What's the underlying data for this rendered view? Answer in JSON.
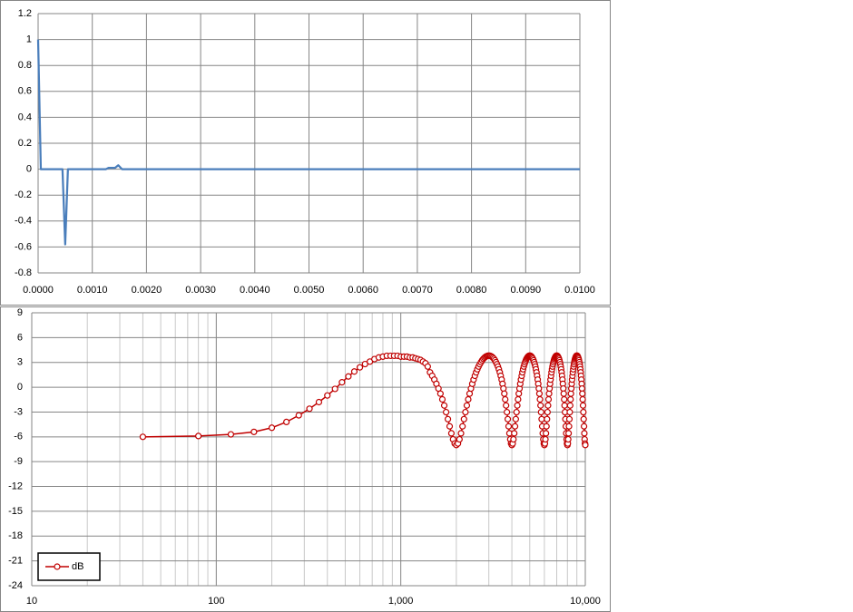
{
  "chart_data": [
    {
      "type": "line",
      "grid": true,
      "x": [
        0,
        5e-05,
        0.00045,
        0.0005,
        0.00055,
        0.00125,
        0.0013,
        0.00142,
        0.00148,
        0.00155,
        0.01
      ],
      "series": [
        {
          "color": "#4a7ebb",
          "values": [
            1,
            0,
            0,
            -0.58,
            0,
            0,
            0.01,
            0.01,
            0.03,
            0,
            0
          ]
        }
      ],
      "xlim": [
        0,
        0.01
      ],
      "xticks": [
        {
          "value": 0,
          "label": "0.0000"
        },
        {
          "value": 0.001,
          "label": "0.0010"
        },
        {
          "value": 0.002,
          "label": "0.0020"
        },
        {
          "value": 0.003,
          "label": "0.0030"
        },
        {
          "value": 0.004,
          "label": "0.0040"
        },
        {
          "value": 0.005,
          "label": "0.0050"
        },
        {
          "value": 0.006,
          "label": "0.0060"
        },
        {
          "value": 0.007,
          "label": "0.0070"
        },
        {
          "value": 0.008,
          "label": "0.0080"
        },
        {
          "value": 0.009,
          "label": "0.0090"
        },
        {
          "value": 0.01,
          "label": "0.0100"
        }
      ],
      "ylim": [
        -0.8,
        1.2
      ],
      "yticks": [
        -0.8,
        -0.6,
        -0.4,
        -0.2,
        0,
        0.2,
        0.4,
        0.6,
        0.8,
        1,
        1.2
      ]
    },
    {
      "type": "line",
      "grid": true,
      "minor_grid": true,
      "xscale": "log",
      "marker": "circle",
      "legend": "lower left",
      "x": [
        40,
        80,
        120,
        160,
        200,
        240,
        280,
        320,
        360,
        400,
        440,
        480,
        520,
        560,
        600,
        640,
        680,
        720,
        760,
        800,
        840,
        880,
        920,
        960,
        1000,
        1040,
        1080,
        1120,
        1160,
        1200,
        1240,
        1280,
        1320,
        1360,
        1400,
        1440,
        1480,
        1520,
        1560,
        1600,
        1640,
        1680,
        1720,
        1760,
        1800,
        1840,
        1880,
        1920,
        1960,
        2000,
        2040,
        2080,
        2120,
        2160,
        2200,
        2240,
        2280,
        2320,
        2360,
        2400,
        2440,
        2480,
        2520,
        2560,
        2600,
        2640,
        2680,
        2720,
        2760,
        2800,
        2840,
        2880,
        2920,
        2960,
        3000,
        3040,
        3080,
        3120,
        3160,
        3200,
        3240,
        3280,
        3320,
        3360,
        3400,
        3440,
        3480,
        3520,
        3560,
        3600,
        3640,
        3680,
        3720,
        3760,
        3800,
        3840,
        3880,
        3920,
        3960,
        4000,
        4040,
        4080,
        4120,
        4160,
        4200,
        4240,
        4280,
        4320,
        4360,
        4400,
        4440,
        4480,
        4520,
        4560,
        4600,
        4640,
        4680,
        4720,
        4760,
        4800,
        4840,
        4880,
        4920,
        4960,
        5000,
        5040,
        5080,
        5120,
        5160,
        5200,
        5240,
        5280,
        5320,
        5360,
        5400,
        5440,
        5480,
        5520,
        5560,
        5600,
        5640,
        5680,
        5720,
        5760,
        5800,
        5840,
        5880,
        5920,
        5960,
        6000,
        6040,
        6080,
        6120,
        6160,
        6200,
        6240,
        6280,
        6320,
        6360,
        6400,
        6440,
        6480,
        6520,
        6560,
        6600,
        6640,
        6680,
        6720,
        6760,
        6800,
        6840,
        6880,
        6920,
        6960,
        7000,
        7040,
        7080,
        7120,
        7160,
        7200,
        7240,
        7280,
        7320,
        7360,
        7400,
        7440,
        7480,
        7520,
        7560,
        7600,
        7640,
        7680,
        7720,
        7760,
        7800,
        7840,
        7880,
        7920,
        7960,
        8000,
        8040,
        8080,
        8120,
        8160,
        8200,
        8240,
        8280,
        8320,
        8360,
        8400,
        8440,
        8480,
        8520,
        8560,
        8600,
        8640,
        8680,
        8720,
        8760,
        8800,
        8840,
        8880,
        8920,
        8960,
        9000,
        9040,
        9080,
        9120,
        9160,
        9200,
        9240,
        9280,
        9320,
        9360,
        9400,
        9440,
        9480,
        9520,
        9560,
        9600,
        9640,
        9680,
        9720,
        9760,
        9800,
        9840,
        9880,
        9920,
        9960,
        10000
      ],
      "series": [
        {
          "name": "dB",
          "color": "#c00000",
          "values": [
            -6.0,
            -5.9,
            -5.7,
            -5.4,
            -4.9,
            -4.2,
            -3.4,
            -2.6,
            -1.8,
            -1.0,
            -0.2,
            0.6,
            1.3,
            1.9,
            2.4,
            2.8,
            3.1,
            3.4,
            3.6,
            3.7,
            3.8,
            3.8,
            3.8,
            3.8,
            3.7,
            3.7,
            3.7,
            3.6,
            3.6,
            3.5,
            3.4,
            3.3,
            3.1,
            2.9,
            2.5,
            1.8,
            1.38,
            0.92,
            0.41,
            -0.16,
            -0.78,
            -1.47,
            -2.21,
            -3.01,
            -3.86,
            -4.73,
            -5.57,
            -6.3,
            -6.81,
            -6.99,
            -6.81,
            -6.3,
            -5.57,
            -4.73,
            -3.86,
            -3.01,
            -2.21,
            -1.47,
            -0.78,
            -0.16,
            0.41,
            0.92,
            1.38,
            1.8,
            2.17,
            2.5,
            2.78,
            3.03,
            3.25,
            3.43,
            3.57,
            3.68,
            3.76,
            3.81,
            3.82,
            3.81,
            3.76,
            3.68,
            3.57,
            3.43,
            3.25,
            3.03,
            2.78,
            2.5,
            2.17,
            1.8,
            1.38,
            0.92,
            0.41,
            -0.16,
            -0.78,
            -1.47,
            -2.21,
            -3.01,
            -3.86,
            -4.73,
            -5.57,
            -6.3,
            -6.81,
            -6.99,
            -6.81,
            -6.3,
            -5.57,
            -4.73,
            -3.86,
            -3.01,
            -2.21,
            -1.47,
            -0.78,
            -0.16,
            0.41,
            0.92,
            1.38,
            1.8,
            2.17,
            2.5,
            2.78,
            3.03,
            3.25,
            3.43,
            3.57,
            3.68,
            3.76,
            3.81,
            3.82,
            3.81,
            3.76,
            3.68,
            3.57,
            3.43,
            3.25,
            3.03,
            2.78,
            2.5,
            2.17,
            1.8,
            1.38,
            0.92,
            0.41,
            -0.16,
            -0.78,
            -1.47,
            -2.21,
            -3.01,
            -3.86,
            -4.73,
            -5.57,
            -6.3,
            -6.81,
            -6.99,
            -6.81,
            -6.3,
            -5.57,
            -4.73,
            -3.86,
            -3.01,
            -2.21,
            -1.47,
            -0.78,
            -0.16,
            0.41,
            0.92,
            1.38,
            1.8,
            2.17,
            2.5,
            2.78,
            3.03,
            3.25,
            3.43,
            3.57,
            3.68,
            3.76,
            3.81,
            3.82,
            3.81,
            3.76,
            3.68,
            3.57,
            3.43,
            3.25,
            3.03,
            2.78,
            2.5,
            2.17,
            1.8,
            1.38,
            0.92,
            0.41,
            -0.16,
            -0.78,
            -1.47,
            -2.21,
            -3.01,
            -3.86,
            -4.73,
            -5.57,
            -6.3,
            -6.81,
            -6.99,
            -6.81,
            -6.3,
            -5.57,
            -4.73,
            -3.86,
            -3.01,
            -2.21,
            -1.47,
            -0.78,
            -0.16,
            0.41,
            0.92,
            1.38,
            1.8,
            2.17,
            2.5,
            2.78,
            3.03,
            3.25,
            3.43,
            3.57,
            3.68,
            3.76,
            3.81,
            3.82,
            3.81,
            3.76,
            3.68,
            3.57,
            3.43,
            3.25,
            3.03,
            2.78,
            2.5,
            2.17,
            1.8,
            1.38,
            0.92,
            0.41,
            -0.16,
            -0.78,
            -1.47,
            -2.21,
            -3.01,
            -3.86,
            -4.73,
            -5.57,
            -6.3,
            -6.81,
            -6.99
          ]
        }
      ],
      "xlim": [
        10,
        10000
      ],
      "xticks": [
        10,
        100,
        {
          "value": 1000,
          "label": "1,000"
        },
        {
          "value": 10000,
          "label": "10,000"
        }
      ],
      "ylim": [
        -24,
        9
      ],
      "yticks": [
        -24,
        -21,
        -18,
        -15,
        -12,
        -9,
        -6,
        -3,
        0,
        3,
        6,
        9
      ]
    }
  ]
}
